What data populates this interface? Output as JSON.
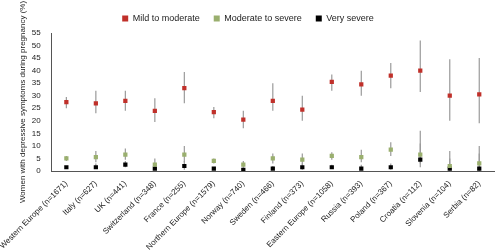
{
  "chart_data": {
    "type": "scatter",
    "y_label": "Women with depressive symptoms during pregnancy (%)",
    "categories": [
      "Western Europe (n=1671)",
      "Italy (n=627)",
      "UK (n=441)",
      "Switzerland (n=348)",
      "France (n=255)",
      "Northern Europe (n=1579)",
      "Norway (n=740)",
      "Sweden (n=466)",
      "Finland (n=373)",
      "Eastern Europe (n=1058)",
      "Russia (n=393)",
      "Poland (n=367)",
      "Croatia (n=112)",
      "Slovenia (n=104)",
      "Serbia (n=82)"
    ],
    "series": [
      {
        "name": "Mild to moderate",
        "color": "#c0302a",
        "marker": "square",
        "values": [
          27.5,
          27,
          28,
          24,
          33,
          23.5,
          20.5,
          28,
          24.5,
          35.5,
          34.5,
          38,
          40,
          30,
          30.5
        ],
        "error_low": [
          25,
          23,
          24,
          19.5,
          27,
          21,
          17,
          24,
          20,
          32,
          30,
          33,
          31.5,
          20,
          19
        ],
        "error_high": [
          29.5,
          32,
          32,
          29,
          39.5,
          25.5,
          24,
          35,
          30,
          38.5,
          40,
          43,
          52,
          44.5,
          45
        ]
      },
      {
        "name": "Moderate to severe",
        "color": "#9aaf6e",
        "marker": "square",
        "values": [
          5,
          5.5,
          6.5,
          2.5,
          6.5,
          4,
          2.5,
          5,
          4.5,
          6,
          5.5,
          8.5,
          6.5,
          2,
          3
        ],
        "error_low": [
          4,
          3.5,
          4.5,
          1.5,
          3.5,
          3,
          1.5,
          3,
          2.5,
          4.5,
          3.5,
          6,
          3,
          0.5,
          0.5
        ],
        "error_high": [
          6,
          8,
          9,
          5,
          10,
          5,
          4,
          7,
          7,
          7.5,
          8.5,
          11.5,
          16,
          8,
          10
        ]
      },
      {
        "name": "Very severe",
        "color": "#000000",
        "marker": "square",
        "values": [
          1.5,
          1.5,
          2.5,
          1,
          2,
          1,
          0.5,
          1,
          1.5,
          1.5,
          1,
          1.5,
          4.5,
          1,
          1
        ],
        "error_low": [
          1,
          1,
          1.5,
          0.5,
          0.5,
          0.5,
          0,
          0.5,
          0.5,
          1,
          0.5,
          0.5,
          1.5,
          0,
          0
        ],
        "error_high": [
          2,
          3,
          4,
          2.5,
          4,
          1.5,
          1.5,
          2,
          3,
          2.5,
          2.5,
          3,
          11,
          5,
          7
        ]
      }
    ],
    "ylim": [
      0,
      55
    ],
    "yticks": [
      0,
      5,
      10,
      15,
      20,
      25,
      30,
      35,
      40,
      45,
      50,
      55
    ],
    "grid": false,
    "legend": "top"
  }
}
